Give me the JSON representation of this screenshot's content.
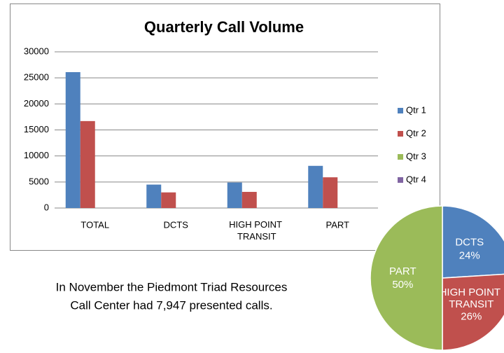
{
  "chart_data": [
    {
      "type": "bar",
      "title": "Quarterly Call Volume",
      "categories": [
        "TOTAL",
        "DCTS",
        "HIGH POINT TRANSIT",
        "PART"
      ],
      "series": [
        {
          "name": "Qtr 1",
          "color": "#4f81bd",
          "values": [
            26100,
            4500,
            4900,
            8100
          ]
        },
        {
          "name": "Qtr 2",
          "color": "#c0504d",
          "values": [
            16700,
            3000,
            3100,
            5900
          ]
        },
        {
          "name": "Qtr 3",
          "color": "#9bbb59",
          "values": [
            null,
            null,
            null,
            null
          ]
        },
        {
          "name": "Qtr 4",
          "color": "#8064a2",
          "values": [
            null,
            null,
            null,
            null
          ]
        }
      ],
      "ylim": [
        0,
        30000
      ],
      "yticks": [
        0,
        5000,
        10000,
        15000,
        20000,
        25000,
        30000
      ],
      "grid": true,
      "legend": "right"
    },
    {
      "type": "pie",
      "categories": [
        "DCTS",
        "HIGH POINT TRANSIT",
        "PART"
      ],
      "values": [
        24,
        26,
        50
      ],
      "value_labels": [
        "24%",
        "26%",
        "50%"
      ],
      "colors": [
        "#4f81bd",
        "#c0504d",
        "#9bbb59"
      ]
    }
  ],
  "caption": [
    "In November the Piedmont Triad Resources",
    "Call Center had 7,947 presented calls."
  ]
}
